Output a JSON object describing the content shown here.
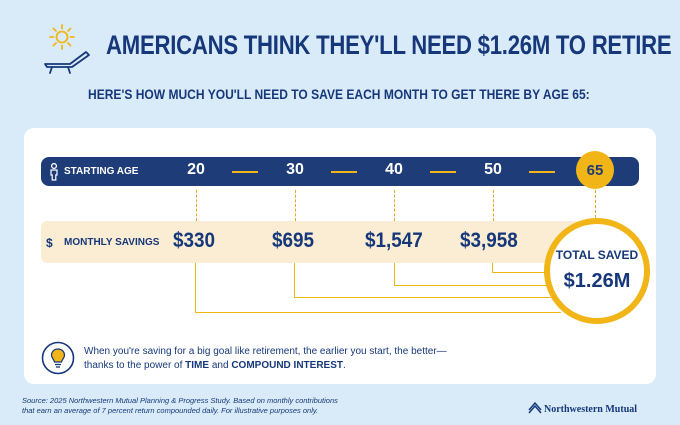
{
  "headline": "AMERICANS THINK THEY'LL NEED $1.26M TO RETIRE",
  "subhead": "HERE'S HOW MUCH YOU'LL NEED TO SAVE EACH MONTH TO GET THERE BY AGE 65:",
  "starting_age": {
    "label": "STARTING AGE",
    "ages": [
      "20",
      "30",
      "40",
      "50"
    ],
    "target_age": "65"
  },
  "monthly_savings": {
    "label": "MONTHLY SAVINGS",
    "currency_symbol": "$",
    "amounts": [
      "$330",
      "$695",
      "$1,547",
      "$3,958"
    ]
  },
  "total": {
    "label": "TOTAL SAVED",
    "value": "$1.26M"
  },
  "tip": {
    "line1": "When you're saving for a big goal like retirement, the earlier you start, the better—",
    "line2_prefix": "thanks to the power of ",
    "term1": "TIME",
    "conjunction": " and ",
    "term2": "COMPOUND INTEREST",
    "suffix": "."
  },
  "source": {
    "line1": "Source: 2025 Northwestern Mutual Planning & Progress Study. Based on monthly contributions",
    "line2": "that earn an average of 7 percent return compounded daily. For illustrative purposes only."
  },
  "brand": "Northwestern Mutual",
  "icons": [
    "sun-icon",
    "lounge-chair-icon",
    "person-icon",
    "lightbulb-icon",
    "brand-logo-icon"
  ],
  "colors": {
    "navy": "#16387a",
    "gold": "#f2b518",
    "sky": "#d9ebf8",
    "cream": "#faedd3"
  }
}
